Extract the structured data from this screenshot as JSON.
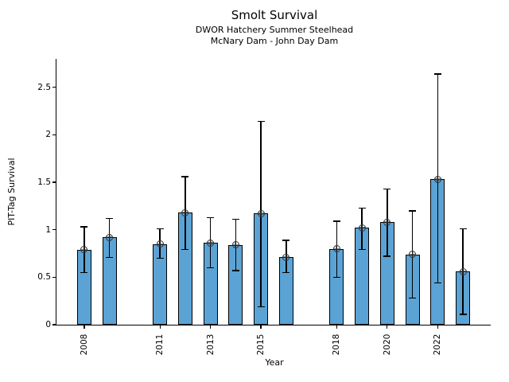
{
  "chart_data": {
    "type": "bar",
    "title": "Smolt Survival",
    "subtitle1": "DWOR Hatchery Summer Steelhead",
    "subtitle2": "McNary Dam - John Day Dam",
    "xlabel": "Year",
    "ylabel": "PIT-Tag Survival",
    "xlim": [
      2006.9,
      2024.1
    ],
    "ylim": [
      0,
      2.8
    ],
    "grid": false,
    "legend": "none",
    "marker": "circle-plus",
    "error_bars": true,
    "yticks": [
      {
        "value": 0,
        "label": "0"
      },
      {
        "value": 0.5,
        "label": "0.5"
      },
      {
        "value": 1,
        "label": "1"
      },
      {
        "value": 1.5,
        "label": "1.5"
      },
      {
        "value": 2,
        "label": "2"
      },
      {
        "value": 2.5,
        "label": "2.5"
      }
    ],
    "xticks": [
      "2008",
      "2011",
      "2013",
      "2015",
      "2018",
      "2020",
      "2022"
    ],
    "colors": {
      "bar_fill": "#5BA3D5",
      "bar_edge": "#000000",
      "error_bar": "#000000",
      "marker_edge": "#333333",
      "axis": "#000000"
    },
    "points": [
      {
        "year": 2008,
        "value": 0.79,
        "ci_low": 0.55,
        "ci_high": 1.03
      },
      {
        "year": 2009,
        "value": 0.92,
        "ci_low": 0.71,
        "ci_high": 1.12
      },
      {
        "year": 2011,
        "value": 0.85,
        "ci_low": 0.7,
        "ci_high": 1.01
      },
      {
        "year": 2012,
        "value": 1.18,
        "ci_low": 0.79,
        "ci_high": 1.56
      },
      {
        "year": 2013,
        "value": 0.86,
        "ci_low": 0.6,
        "ci_high": 1.13
      },
      {
        "year": 2014,
        "value": 0.84,
        "ci_low": 0.57,
        "ci_high": 1.11
      },
      {
        "year": 2015,
        "value": 1.17,
        "ci_low": 0.19,
        "ci_high": 2.14
      },
      {
        "year": 2016,
        "value": 0.71,
        "ci_low": 0.55,
        "ci_high": 0.89
      },
      {
        "year": 2018,
        "value": 0.8,
        "ci_low": 0.5,
        "ci_high": 1.09
      },
      {
        "year": 2019,
        "value": 1.02,
        "ci_low": 0.79,
        "ci_high": 1.23
      },
      {
        "year": 2020,
        "value": 1.08,
        "ci_low": 0.72,
        "ci_high": 1.43
      },
      {
        "year": 2021,
        "value": 0.74,
        "ci_low": 0.28,
        "ci_high": 1.2
      },
      {
        "year": 2022,
        "value": 1.53,
        "ci_low": 0.44,
        "ci_high": 2.64
      },
      {
        "year": 2023,
        "value": 0.56,
        "ci_low": 0.11,
        "ci_high": 1.01
      }
    ]
  }
}
